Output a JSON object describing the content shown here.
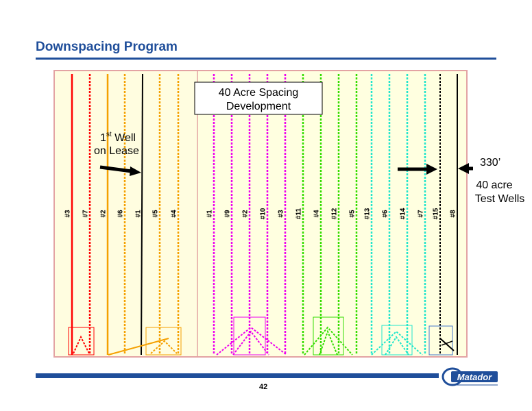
{
  "title": "Downspacing Program",
  "page_number": "42",
  "box_label": [
    "40 Acre Spacing",
    "Development"
  ],
  "first_well": {
    "line1_base": "1",
    "line1_sup": "st",
    "line1_rest": " Well",
    "line2": "on Lease"
  },
  "spacing_label": "330’",
  "test_wells_label": [
    "40 acre",
    "Test Wells"
  ],
  "logo_text": "Matador",
  "colors": {
    "title": "#1f4e9a",
    "left_bg": "#fffde0",
    "right_bg": "#ffffe0",
    "frame": "#e3a3a3",
    "red": "#ff0000",
    "orange": "#f5a000",
    "black": "#000000",
    "magenta": "#ee00ee",
    "green": "#33dd00",
    "cyan": "#22e6cc",
    "blue": "#4477cc"
  },
  "wells": [
    {
      "label": "#3",
      "group": "red",
      "style": "solid"
    },
    {
      "label": "#7",
      "group": "red",
      "style": "dashed"
    },
    {
      "label": "#2",
      "group": "orange",
      "style": "solid"
    },
    {
      "label": "#6",
      "group": "orange",
      "style": "dashed"
    },
    {
      "label": "#1",
      "group": "black",
      "style": "solid"
    },
    {
      "label": "#5",
      "group": "orange",
      "style": "dashed"
    },
    {
      "label": "#4",
      "group": "orange",
      "style": "dashed"
    },
    {
      "label": "#1",
      "group": "magenta",
      "style": "dashed"
    },
    {
      "label": "#9",
      "group": "magenta",
      "style": "dashed"
    },
    {
      "label": "#2",
      "group": "magenta",
      "style": "dashed"
    },
    {
      "label": "#10",
      "group": "magenta",
      "style": "dashed"
    },
    {
      "label": "#3",
      "group": "magenta",
      "style": "dashed"
    },
    {
      "label": "#11",
      "group": "green",
      "style": "dashed"
    },
    {
      "label": "#4",
      "group": "green",
      "style": "dashed"
    },
    {
      "label": "#12",
      "group": "green",
      "style": "dashed"
    },
    {
      "label": "#5",
      "group": "green",
      "style": "dashed"
    },
    {
      "label": "#13",
      "group": "cyan",
      "style": "dashed"
    },
    {
      "label": "#6",
      "group": "cyan",
      "style": "dashed"
    },
    {
      "label": "#14",
      "group": "cyan",
      "style": "dashed"
    },
    {
      "label": "#7",
      "group": "cyan",
      "style": "dashed"
    },
    {
      "label": "#15",
      "group": "black",
      "style": "dashed"
    },
    {
      "label": "#8",
      "group": "black",
      "style": "solid"
    }
  ]
}
